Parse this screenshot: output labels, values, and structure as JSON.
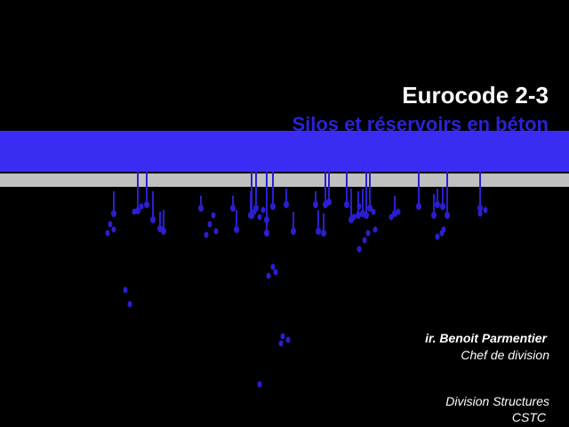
{
  "header": {
    "title": "Eurocode 2-3",
    "subtitle": "Silos et réservoirs en béton"
  },
  "author": {
    "name": "ir. Benoit Parmentier",
    "role": "Chef de division"
  },
  "organization": {
    "department": "Division Structures",
    "name": "CSTC"
  }
}
